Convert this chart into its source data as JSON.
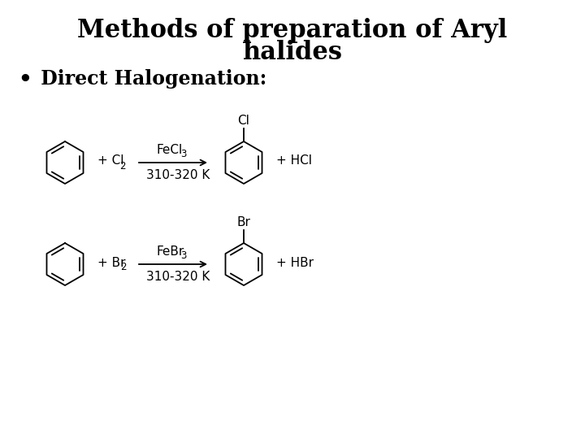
{
  "title_line1": "Methods of preparation of Aryl",
  "title_line2": "halides",
  "bullet_char": "•",
  "bullet_text": " Direct Halogenation:",
  "rxn1": {
    "catalyst_base": "FeCl",
    "catalyst_sub": "3",
    "conditions": "310-320 K",
    "reagent_base": "+ Cl",
    "reagent_sub": "2",
    "product_label": "Cl",
    "byproduct": "+ HCl"
  },
  "rxn2": {
    "catalyst_base": "FeBr",
    "catalyst_sub": "3",
    "conditions": "310-320 K",
    "reagent_base": "+ Br",
    "reagent_sub": "2",
    "product_label": "Br",
    "byproduct": "+ HBr"
  },
  "bg_color": "#ffffff",
  "text_color": "#000000",
  "title_fontsize": 22,
  "bullet_fontsize": 17,
  "rxn_fontsize": 11,
  "sub_fontsize": 8.5,
  "ring_lw": 1.3
}
